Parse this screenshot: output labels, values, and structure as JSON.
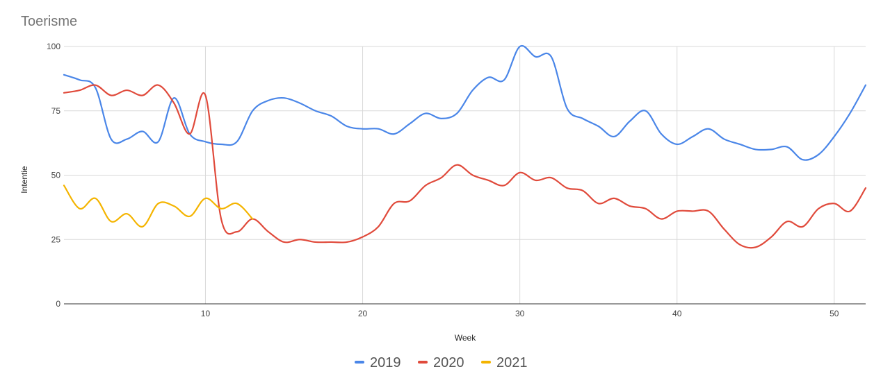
{
  "chart_data": {
    "type": "line",
    "title": "Toerisme",
    "xlabel": "Week",
    "ylabel": "Intentie",
    "xlim": [
      1,
      52
    ],
    "ylim": [
      0,
      100
    ],
    "x_ticks": [
      10,
      20,
      30,
      40,
      50
    ],
    "y_ticks": [
      0,
      25,
      50,
      75,
      100
    ],
    "grid": true,
    "legend_position": "bottom",
    "series": [
      {
        "name": "2019",
        "color": "#4a86e8",
        "x": [
          1,
          2,
          3,
          4,
          5,
          6,
          7,
          8,
          9,
          10,
          11,
          12,
          13,
          14,
          15,
          16,
          17,
          18,
          19,
          20,
          21,
          22,
          23,
          24,
          25,
          26,
          27,
          28,
          29,
          30,
          31,
          32,
          33,
          34,
          35,
          36,
          37,
          38,
          39,
          40,
          41,
          42,
          43,
          44,
          45,
          46,
          47,
          48,
          49,
          50,
          51,
          52
        ],
        "y": [
          89,
          87,
          84,
          64,
          64,
          67,
          63,
          80,
          66,
          63,
          62,
          63,
          75,
          79,
          80,
          78,
          75,
          73,
          69,
          68,
          68,
          66,
          70,
          74,
          72,
          74,
          83,
          88,
          87,
          100,
          96,
          96,
          76,
          72,
          69,
          65,
          71,
          75,
          66,
          62,
          65,
          68,
          64,
          62,
          60,
          60,
          61,
          56,
          58,
          65,
          74,
          85
        ]
      },
      {
        "name": "2020",
        "color": "#e04a3b",
        "x": [
          1,
          2,
          3,
          4,
          5,
          6,
          7,
          8,
          9,
          10,
          11,
          12,
          13,
          14,
          15,
          16,
          17,
          18,
          19,
          20,
          21,
          22,
          23,
          24,
          25,
          26,
          27,
          28,
          29,
          30,
          31,
          32,
          33,
          34,
          35,
          36,
          37,
          38,
          39,
          40,
          41,
          42,
          43,
          44,
          45,
          46,
          47,
          48,
          49,
          50,
          51,
          52
        ],
        "y": [
          82,
          83,
          85,
          81,
          83,
          81,
          85,
          78,
          66,
          81,
          33,
          28,
          33,
          28,
          24,
          25,
          24,
          24,
          24,
          26,
          30,
          39,
          40,
          46,
          49,
          54,
          50,
          48,
          46,
          51,
          48,
          49,
          45,
          44,
          39,
          41,
          38,
          37,
          33,
          36,
          36,
          36,
          29,
          23,
          22,
          26,
          32,
          30,
          37,
          39,
          36,
          45
        ]
      },
      {
        "name": "2021",
        "color": "#f4b400",
        "x": [
          1,
          2,
          3,
          4,
          5,
          6,
          7,
          8,
          9,
          10,
          11,
          12,
          13
        ],
        "y": [
          46,
          37,
          41,
          32,
          35,
          30,
          39,
          38,
          34,
          41,
          37,
          39,
          33
        ]
      }
    ]
  }
}
